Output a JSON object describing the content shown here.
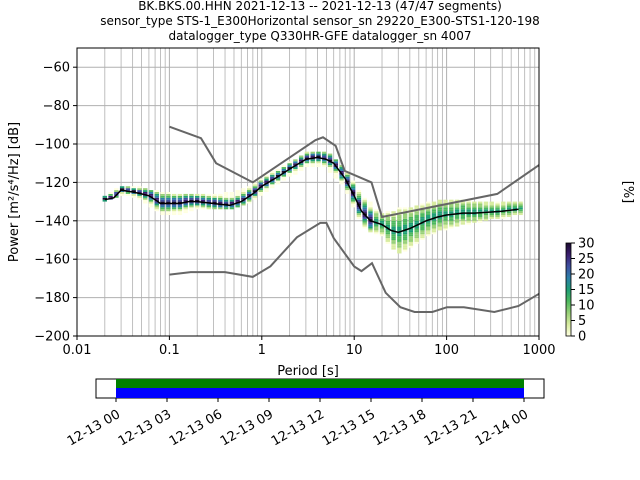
{
  "title_lines": [
    "BK.BKS.00.HHN   2021-12-13 -- 2021-12-13  (47/47 segments)",
    "sensor_type STS-1_E300Horizontal sensor_sn 29220_E300-STS1-120-198",
    "datalogger_type Q330HR-GFE datalogger_sn 4007"
  ],
  "chart_data": {
    "type": "heatmap",
    "xlabel": "Period [s]",
    "ylabel": "Power [m²/s⁴/Hz] [dB]",
    "xscale": "log",
    "xlim": [
      0.01,
      1000
    ],
    "ylim": [
      -200,
      -50
    ],
    "x_tick_labels": [
      "0.01",
      "0.1",
      "1",
      "10",
      "100",
      "1000"
    ],
    "x_ticks": [
      0.01,
      0.1,
      1,
      10,
      100,
      1000
    ],
    "y_ticks": [
      -200,
      -180,
      -160,
      -140,
      -120,
      -100,
      -80,
      -60
    ],
    "grid": true,
    "mode_curve": [
      [
        0.02,
        -129
      ],
      [
        0.025,
        -128
      ],
      [
        0.03,
        -124
      ],
      [
        0.04,
        -125
      ],
      [
        0.05,
        -126
      ],
      [
        0.06,
        -127
      ],
      [
        0.07,
        -129
      ],
      [
        0.08,
        -131
      ],
      [
        0.1,
        -131
      ],
      [
        0.13,
        -131
      ],
      [
        0.16,
        -130
      ],
      [
        0.2,
        -130
      ],
      [
        0.3,
        -131
      ],
      [
        0.45,
        -132
      ],
      [
        0.6,
        -130
      ],
      [
        0.8,
        -126
      ],
      [
        1,
        -122
      ],
      [
        1.5,
        -117
      ],
      [
        2,
        -113
      ],
      [
        3,
        -108
      ],
      [
        4,
        -107
      ],
      [
        5,
        -108
      ],
      [
        6,
        -110
      ],
      [
        8,
        -118
      ],
      [
        10,
        -127
      ],
      [
        12,
        -135
      ],
      [
        15,
        -140
      ],
      [
        20,
        -142
      ],
      [
        25,
        -145
      ],
      [
        30,
        -146
      ],
      [
        40,
        -144
      ],
      [
        60,
        -140
      ],
      [
        80,
        -138
      ],
      [
        100,
        -137
      ],
      [
        150,
        -136
      ],
      [
        200,
        -136
      ],
      [
        400,
        -135
      ],
      [
        600,
        -134
      ]
    ],
    "nhnm": [
      [
        0.1,
        -91
      ],
      [
        0.22,
        -97
      ],
      [
        0.32,
        -110
      ],
      [
        0.8,
        -120
      ],
      [
        3.8,
        -98
      ],
      [
        4.6,
        -96.5
      ],
      [
        6.3,
        -101
      ],
      [
        7.9,
        -114
      ],
      [
        15.4,
        -120
      ],
      [
        20,
        -138
      ],
      [
        354,
        -126
      ],
      [
        1000,
        -111
      ]
    ],
    "nlnm": [
      [
        0.1,
        -168
      ],
      [
        0.17,
        -166.7
      ],
      [
        0.4,
        -166.7
      ],
      [
        0.8,
        -169.2
      ],
      [
        1.24,
        -163.7
      ],
      [
        2.4,
        -148.6
      ],
      [
        4.3,
        -141.1
      ],
      [
        5,
        -141.1
      ],
      [
        6,
        -149
      ],
      [
        10,
        -163.8
      ],
      [
        12,
        -166.2
      ],
      [
        15.6,
        -162.1
      ],
      [
        21.9,
        -177.5
      ],
      [
        31.6,
        -185
      ],
      [
        45,
        -187.5
      ],
      [
        70,
        -187.5
      ],
      [
        101,
        -185
      ],
      [
        154,
        -185
      ],
      [
        328,
        -187.5
      ],
      [
        600,
        -184.4
      ],
      [
        1000,
        -178
      ]
    ],
    "density_band": {
      "lower": [
        [
          0.02,
          -130
        ],
        [
          0.03,
          -126
        ],
        [
          0.05,
          -129
        ],
        [
          0.08,
          -136
        ],
        [
          0.12,
          -137
        ],
        [
          0.2,
          -134
        ],
        [
          0.4,
          -134
        ],
        [
          0.7,
          -131
        ],
        [
          1.5,
          -120
        ],
        [
          3,
          -112
        ],
        [
          5,
          -112
        ],
        [
          8,
          -123
        ],
        [
          12,
          -142
        ],
        [
          20,
          -150
        ],
        [
          30,
          -160
        ],
        [
          60,
          -150
        ],
        [
          100,
          -147
        ],
        [
          300,
          -140
        ],
        [
          700,
          -138
        ]
      ],
      "upper": [
        [
          0.02,
          -128
        ],
        [
          0.03,
          -123
        ],
        [
          0.05,
          -124
        ],
        [
          0.08,
          -126
        ],
        [
          0.12,
          -128
        ],
        [
          0.2,
          -127
        ],
        [
          0.4,
          -127
        ],
        [
          0.7,
          -124
        ],
        [
          1.5,
          -114
        ],
        [
          3,
          -106
        ],
        [
          5,
          -105
        ],
        [
          8,
          -114
        ],
        [
          12,
          -128
        ],
        [
          20,
          -137
        ],
        [
          30,
          -134
        ],
        [
          60,
          -131
        ],
        [
          100,
          -130
        ],
        [
          300,
          -130
        ],
        [
          700,
          -131
        ]
      ]
    },
    "colorbar": {
      "label": "[%]",
      "range": [
        0,
        30
      ],
      "ticks": [
        "0",
        "5",
        "10",
        "15",
        "20",
        "25",
        "30"
      ],
      "colormap": [
        "#ffffe0",
        "#d8eca0",
        "#98d078",
        "#4db85e",
        "#1f9e76",
        "#2c7fa8",
        "#3f4fa0",
        "#3a1e6e",
        "#1a0a2e"
      ]
    },
    "timeline": {
      "tick_labels": [
        "12-13 00",
        "12-13 03",
        "12-13 06",
        "12-13 09",
        "12-13 12",
        "12-13 15",
        "12-13 18",
        "12-13 21",
        "12-14 00"
      ],
      "range_hours": [
        0,
        24
      ],
      "data_coverage_hours": [
        0,
        24
      ],
      "bar_colors": {
        "gaps": "#008000",
        "data": "#0000ff"
      }
    }
  }
}
